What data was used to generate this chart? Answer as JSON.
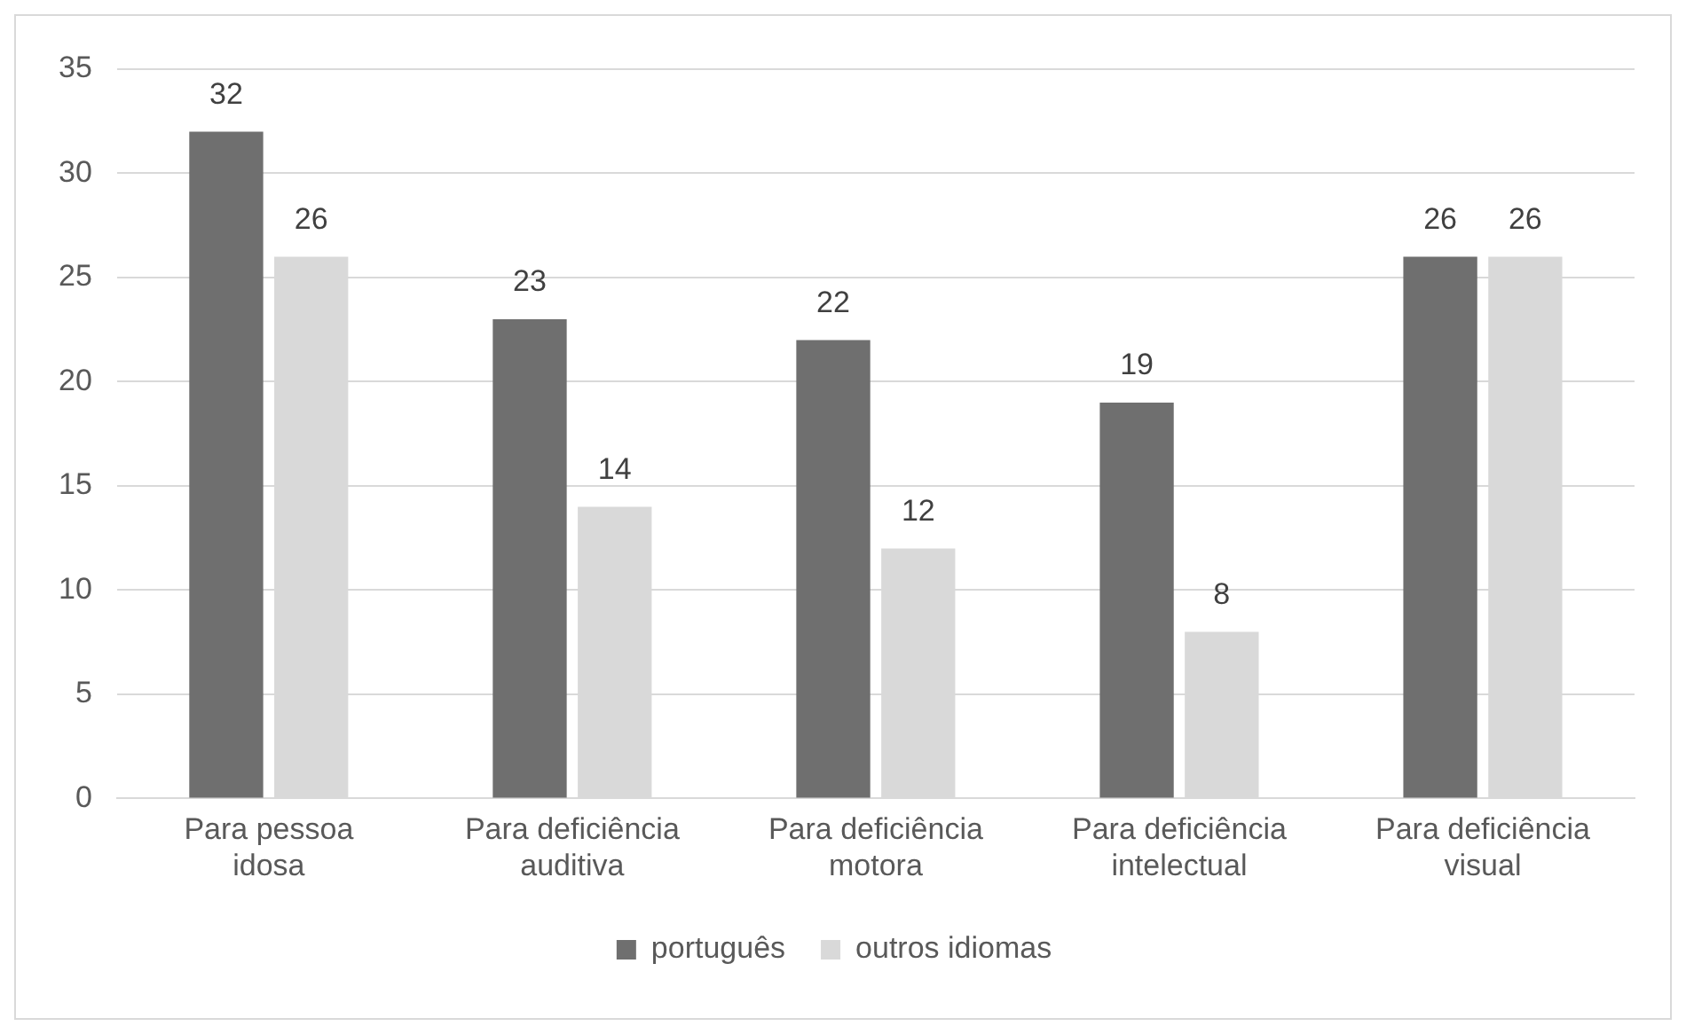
{
  "chart_data": {
    "type": "bar",
    "categories": [
      "Para pessoa idosa",
      "Para deficiência auditiva",
      "Para deficiência motora",
      "Para deficiência intelectual",
      "Para deficiência visual"
    ],
    "series": [
      {
        "name": "português",
        "color": "#6f6f6f",
        "values": [
          32,
          23,
          22,
          19,
          26
        ]
      },
      {
        "name": "outros idiomas",
        "color": "#d9d9d9",
        "values": [
          26,
          14,
          12,
          8,
          26
        ]
      }
    ],
    "ylim": [
      0,
      35
    ],
    "yticks": [
      0,
      5,
      10,
      15,
      20,
      25,
      30,
      35
    ],
    "grid": "y",
    "legend": "bottom",
    "data_labels": true
  }
}
